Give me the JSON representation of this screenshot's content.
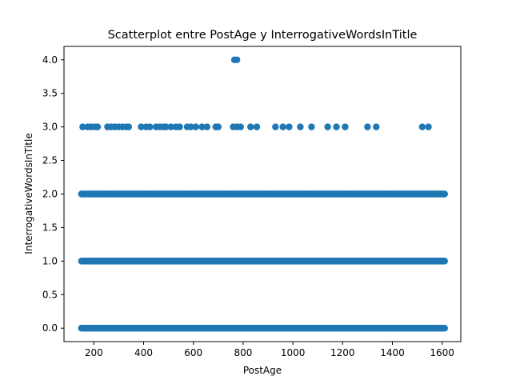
{
  "chart_data": {
    "type": "scatter",
    "title": "Scatterplot entre PostAge y InterrogativeWordsInTitle",
    "xlabel": "PostAge",
    "ylabel": "InterrogativeWordsInTitle",
    "xlim": [
      80,
      1675
    ],
    "ylim": [
      -0.2,
      4.2
    ],
    "xticks": [
      200,
      400,
      600,
      800,
      1000,
      1200,
      1400,
      1600
    ],
    "yticks": [
      0.0,
      0.5,
      1.0,
      1.5,
      2.0,
      2.5,
      3.0,
      3.5,
      4.0
    ],
    "xtick_labels": [
      "200",
      "400",
      "600",
      "800",
      "1000",
      "1200",
      "1400",
      "1600"
    ],
    "ytick_labels": [
      "0.0",
      "0.5",
      "1.0",
      "1.5",
      "2.0",
      "2.5",
      "3.0",
      "3.5",
      "4.0"
    ],
    "grid": false,
    "marker_color": "#1f77b4",
    "series": [
      {
        "bands": [
          {
            "y": 0,
            "x_range": [
              150,
              1610
            ]
          },
          {
            "y": 1,
            "x_range": [
              150,
              1610
            ]
          },
          {
            "y": 2,
            "x_range": [
              150,
              1610
            ]
          }
        ],
        "points": [
          {
            "x": 765,
            "y": 4
          },
          {
            "x": 775,
            "y": 4
          },
          {
            "x": 155,
            "y": 3
          },
          {
            "x": 175,
            "y": 3
          },
          {
            "x": 190,
            "y": 3
          },
          {
            "x": 205,
            "y": 3
          },
          {
            "x": 215,
            "y": 3
          },
          {
            "x": 255,
            "y": 3
          },
          {
            "x": 270,
            "y": 3
          },
          {
            "x": 285,
            "y": 3
          },
          {
            "x": 300,
            "y": 3
          },
          {
            "x": 315,
            "y": 3
          },
          {
            "x": 330,
            "y": 3
          },
          {
            "x": 340,
            "y": 3
          },
          {
            "x": 390,
            "y": 3
          },
          {
            "x": 410,
            "y": 3
          },
          {
            "x": 425,
            "y": 3
          },
          {
            "x": 450,
            "y": 3
          },
          {
            "x": 465,
            "y": 3
          },
          {
            "x": 480,
            "y": 3
          },
          {
            "x": 490,
            "y": 3
          },
          {
            "x": 510,
            "y": 3
          },
          {
            "x": 530,
            "y": 3
          },
          {
            "x": 545,
            "y": 3
          },
          {
            "x": 575,
            "y": 3
          },
          {
            "x": 590,
            "y": 3
          },
          {
            "x": 610,
            "y": 3
          },
          {
            "x": 635,
            "y": 3
          },
          {
            "x": 655,
            "y": 3
          },
          {
            "x": 690,
            "y": 3
          },
          {
            "x": 700,
            "y": 3
          },
          {
            "x": 760,
            "y": 3
          },
          {
            "x": 775,
            "y": 3
          },
          {
            "x": 790,
            "y": 3
          },
          {
            "x": 830,
            "y": 3
          },
          {
            "x": 855,
            "y": 3
          },
          {
            "x": 930,
            "y": 3
          },
          {
            "x": 960,
            "y": 3
          },
          {
            "x": 985,
            "y": 3
          },
          {
            "x": 1030,
            "y": 3
          },
          {
            "x": 1075,
            "y": 3
          },
          {
            "x": 1140,
            "y": 3
          },
          {
            "x": 1175,
            "y": 3
          },
          {
            "x": 1210,
            "y": 3
          },
          {
            "x": 1300,
            "y": 3
          },
          {
            "x": 1335,
            "y": 3
          },
          {
            "x": 1520,
            "y": 3
          },
          {
            "x": 1545,
            "y": 3
          }
        ]
      }
    ]
  }
}
